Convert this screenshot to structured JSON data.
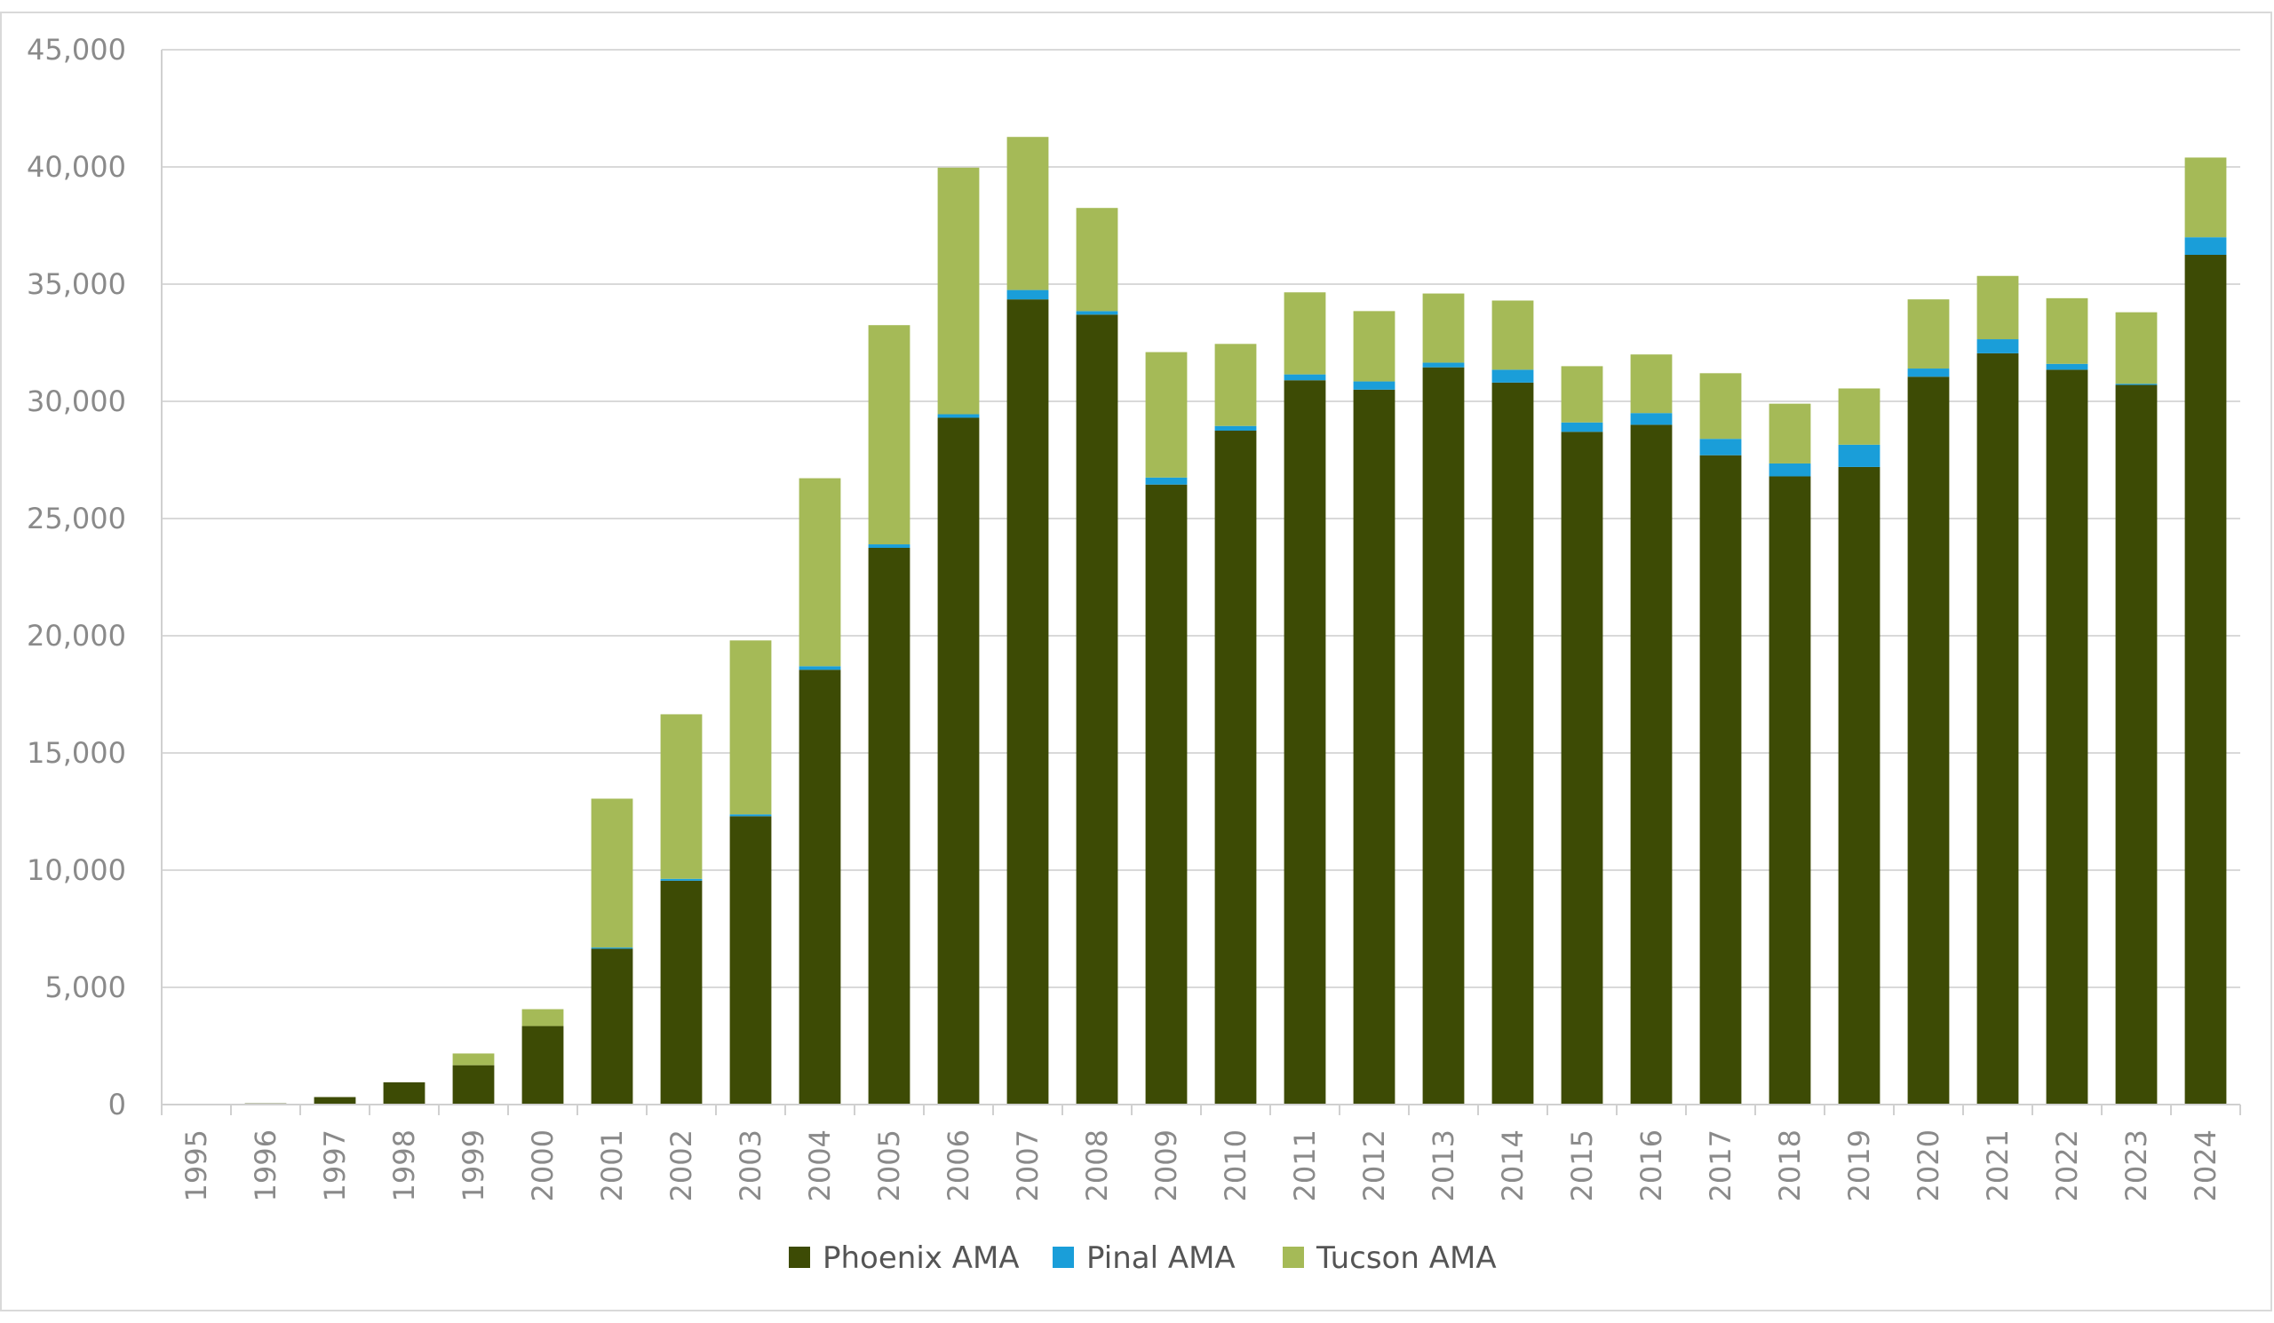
{
  "chart_data": {
    "type": "bar",
    "stacked": true,
    "title": "",
    "xlabel": "",
    "ylabel": "",
    "ylim": [
      0,
      45000
    ],
    "yticks": [
      0,
      5000,
      10000,
      15000,
      20000,
      25000,
      30000,
      35000,
      40000,
      45000
    ],
    "ytick_labels": [
      "0",
      "5,000",
      "10,000",
      "15,000",
      "20,000",
      "25,000",
      "30,000",
      "35,000",
      "40,000",
      "45,000"
    ],
    "grid": true,
    "legend_position": "bottom",
    "categories": [
      "1995",
      "1996",
      "1997",
      "1998",
      "1999",
      "2000",
      "2001",
      "2002",
      "2003",
      "2004",
      "2005",
      "2006",
      "2007",
      "2008",
      "2009",
      "2010",
      "2011",
      "2012",
      "2013",
      "2014",
      "2015",
      "2016",
      "2017",
      "2018",
      "2019",
      "2020",
      "2021",
      "2022",
      "2023",
      "2024"
    ],
    "series": [
      {
        "name": "Phoenix AMA",
        "color": "#3d4b05",
        "values": [
          0,
          50,
          320,
          950,
          1680,
          3350,
          6650,
          9550,
          12300,
          18550,
          23750,
          29300,
          34350,
          33700,
          26450,
          28750,
          30900,
          30500,
          31450,
          30800,
          28700,
          29000,
          27700,
          26800,
          27200,
          31050,
          32050,
          31350,
          30700,
          36250
        ]
      },
      {
        "name": "Pinal AMA",
        "color": "#1a9ed9",
        "values": [
          0,
          0,
          0,
          0,
          0,
          0,
          50,
          80,
          80,
          150,
          150,
          150,
          400,
          150,
          300,
          200,
          250,
          350,
          200,
          550,
          400,
          500,
          700,
          550,
          950,
          350,
          600,
          250,
          50,
          750
        ]
      },
      {
        "name": "Tucson AMA",
        "color": "#a5ba57",
        "values": [
          0,
          0,
          0,
          0,
          500,
          720,
          6350,
          7020,
          7420,
          8020,
          9350,
          10520,
          6530,
          4400,
          5350,
          3500,
          3500,
          3000,
          2950,
          2950,
          2400,
          2500,
          2800,
          2550,
          2400,
          2950,
          2700,
          2800,
          3050,
          3400
        ]
      }
    ]
  },
  "colors": {
    "grid": "#d9d9d9",
    "axis": "#d0d0d0",
    "tick_text": "#8a8a8a",
    "legend_text": "#555555",
    "frame": "#d9d9d9"
  }
}
